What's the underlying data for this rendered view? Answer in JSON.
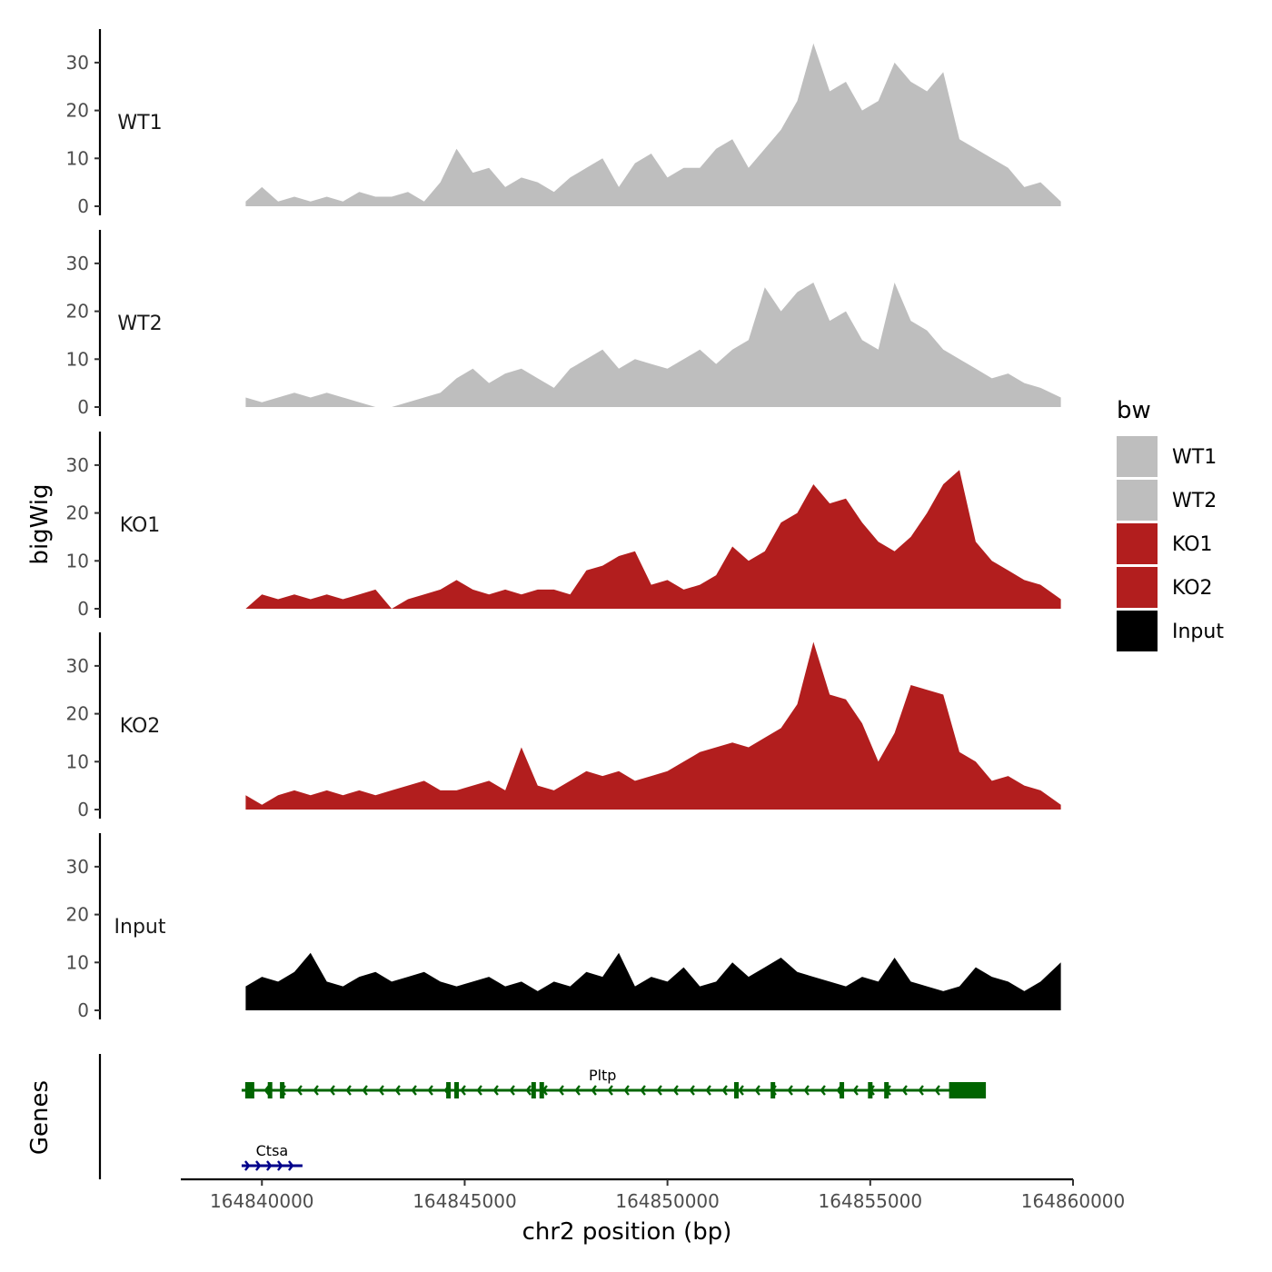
{
  "chart_data": {
    "type": "area",
    "title": "",
    "xlabel": "chr2 position (bp)",
    "ylabel": "bigWig",
    "genes_label": "Genes",
    "xlim": [
      164838000,
      164860000
    ],
    "ylim": [
      0,
      37
    ],
    "x_ticks": [
      164840000,
      164845000,
      164850000,
      164855000,
      164860000
    ],
    "x_tick_labels": [
      "164840000",
      "164845000",
      "164850000",
      "164855000",
      "164860000"
    ],
    "y_ticks": [
      0,
      10,
      20,
      30
    ],
    "y_tick_labels": [
      "0",
      "10",
      "20",
      "30"
    ],
    "legend": {
      "title": "bw",
      "position": "right",
      "entries": [
        {
          "label": "WT1",
          "color": "#bebebe"
        },
        {
          "label": "WT2",
          "color": "#bebebe"
        },
        {
          "label": "KO1",
          "color": "#b21e1e"
        },
        {
          "label": "KO2",
          "color": "#b21e1e"
        },
        {
          "label": "Input",
          "color": "#000000"
        }
      ]
    },
    "series": [
      {
        "name": "WT1",
        "color": "#bebebe",
        "x": [
          164839600,
          164840000,
          164840400,
          164840800,
          164841200,
          164841600,
          164842000,
          164842400,
          164842800,
          164843200,
          164843600,
          164844000,
          164844400,
          164844800,
          164845200,
          164845600,
          164846000,
          164846400,
          164846800,
          164847200,
          164847600,
          164848000,
          164848400,
          164848800,
          164849200,
          164849600,
          164850000,
          164850400,
          164850800,
          164851200,
          164851600,
          164852000,
          164852400,
          164852800,
          164853200,
          164853600,
          164854000,
          164854400,
          164854800,
          164855200,
          164855600,
          164856000,
          164856400,
          164856800,
          164857200,
          164857600,
          164858000,
          164858400,
          164858800,
          164859200,
          164859700
        ],
        "values": [
          1,
          4,
          1,
          2,
          1,
          2,
          1,
          3,
          2,
          2,
          3,
          1,
          5,
          12,
          7,
          8,
          4,
          6,
          5,
          3,
          6,
          8,
          10,
          4,
          9,
          11,
          6,
          8,
          8,
          12,
          14,
          8,
          12,
          16,
          22,
          34,
          24,
          26,
          20,
          22,
          30,
          26,
          24,
          28,
          14,
          12,
          10,
          8,
          4,
          5,
          1
        ]
      },
      {
        "name": "WT2",
        "color": "#bebebe",
        "x": [
          164839600,
          164840000,
          164840400,
          164840800,
          164841200,
          164841600,
          164842000,
          164842400,
          164842800,
          164843200,
          164843600,
          164844000,
          164844400,
          164844800,
          164845200,
          164845600,
          164846000,
          164846400,
          164846800,
          164847200,
          164847600,
          164848000,
          164848400,
          164848800,
          164849200,
          164849600,
          164850000,
          164850400,
          164850800,
          164851200,
          164851600,
          164852000,
          164852400,
          164852800,
          164853200,
          164853600,
          164854000,
          164854400,
          164854800,
          164855200,
          164855600,
          164856000,
          164856400,
          164856800,
          164857200,
          164857600,
          164858000,
          164858400,
          164858800,
          164859200,
          164859700
        ],
        "values": [
          2,
          1,
          2,
          3,
          2,
          3,
          2,
          1,
          0,
          0,
          1,
          2,
          3,
          6,
          8,
          5,
          7,
          8,
          6,
          4,
          8,
          10,
          12,
          8,
          10,
          9,
          8,
          10,
          12,
          9,
          12,
          14,
          25,
          20,
          24,
          26,
          18,
          20,
          14,
          12,
          26,
          18,
          16,
          12,
          10,
          8,
          6,
          7,
          5,
          4,
          2
        ]
      },
      {
        "name": "KO1",
        "color": "#b21e1e",
        "x": [
          164839600,
          164840000,
          164840400,
          164840800,
          164841200,
          164841600,
          164842000,
          164842400,
          164842800,
          164843200,
          164843600,
          164844000,
          164844400,
          164844800,
          164845200,
          164845600,
          164846000,
          164846400,
          164846800,
          164847200,
          164847600,
          164848000,
          164848400,
          164848800,
          164849200,
          164849600,
          164850000,
          164850400,
          164850800,
          164851200,
          164851600,
          164852000,
          164852400,
          164852800,
          164853200,
          164853600,
          164854000,
          164854400,
          164854800,
          164855200,
          164855600,
          164856000,
          164856400,
          164856800,
          164857200,
          164857600,
          164858000,
          164858400,
          164858800,
          164859200,
          164859700
        ],
        "values": [
          0,
          3,
          2,
          3,
          2,
          3,
          2,
          3,
          4,
          0,
          2,
          3,
          4,
          6,
          4,
          3,
          4,
          3,
          4,
          4,
          3,
          8,
          9,
          11,
          12,
          5,
          6,
          4,
          5,
          7,
          13,
          10,
          12,
          18,
          20,
          26,
          22,
          23,
          18,
          14,
          12,
          15,
          20,
          26,
          29,
          14,
          10,
          8,
          6,
          5,
          2
        ]
      },
      {
        "name": "KO2",
        "color": "#b21e1e",
        "x": [
          164839600,
          164840000,
          164840400,
          164840800,
          164841200,
          164841600,
          164842000,
          164842400,
          164842800,
          164843200,
          164843600,
          164844000,
          164844400,
          164844800,
          164845200,
          164845600,
          164846000,
          164846400,
          164846800,
          164847200,
          164847600,
          164848000,
          164848400,
          164848800,
          164849200,
          164849600,
          164850000,
          164850400,
          164850800,
          164851200,
          164851600,
          164852000,
          164852400,
          164852800,
          164853200,
          164853600,
          164854000,
          164854400,
          164854800,
          164855200,
          164855600,
          164856000,
          164856400,
          164856800,
          164857200,
          164857600,
          164858000,
          164858400,
          164858800,
          164859200,
          164859700
        ],
        "values": [
          3,
          1,
          3,
          4,
          3,
          4,
          3,
          4,
          3,
          4,
          5,
          6,
          4,
          4,
          5,
          6,
          4,
          13,
          5,
          4,
          6,
          8,
          7,
          8,
          6,
          7,
          8,
          10,
          12,
          13,
          14,
          13,
          15,
          17,
          22,
          35,
          24,
          23,
          18,
          10,
          16,
          26,
          25,
          24,
          12,
          10,
          6,
          7,
          5,
          4,
          1
        ]
      },
      {
        "name": "Input",
        "color": "#000000",
        "x": [
          164839600,
          164840000,
          164840400,
          164840800,
          164841200,
          164841600,
          164842000,
          164842400,
          164842800,
          164843200,
          164843600,
          164844000,
          164844400,
          164844800,
          164845200,
          164845600,
          164846000,
          164846400,
          164846800,
          164847200,
          164847600,
          164848000,
          164848400,
          164848800,
          164849200,
          164849600,
          164850000,
          164850400,
          164850800,
          164851200,
          164851600,
          164852000,
          164852400,
          164852800,
          164853200,
          164853600,
          164854000,
          164854400,
          164854800,
          164855200,
          164855600,
          164856000,
          164856400,
          164856800,
          164857200,
          164857600,
          164858000,
          164858400,
          164858800,
          164859200,
          164859700
        ],
        "values": [
          5,
          7,
          6,
          8,
          12,
          6,
          5,
          7,
          8,
          6,
          7,
          8,
          6,
          5,
          6,
          7,
          5,
          6,
          4,
          6,
          5,
          8,
          7,
          12,
          5,
          7,
          6,
          9,
          5,
          6,
          10,
          7,
          9,
          11,
          8,
          7,
          6,
          5,
          7,
          6,
          11,
          6,
          5,
          4,
          5,
          9,
          7,
          6,
          4,
          6,
          10
        ]
      }
    ],
    "gene_track": {
      "genes": [
        {
          "name": "Pltp",
          "start": 164839500,
          "end": 164857700,
          "strand": "-",
          "color": "#006400",
          "exons": [
            164839700,
            164840200,
            164840500,
            164844600,
            164844800,
            164846700,
            164846900,
            164851700,
            164852600,
            164854300,
            164855000,
            164855400,
            164857000,
            164857300
          ]
        },
        {
          "name": "Ctsa",
          "start": 164839500,
          "end": 164841000,
          "strand": "+",
          "color": "#00008b",
          "exons": []
        }
      ]
    }
  }
}
